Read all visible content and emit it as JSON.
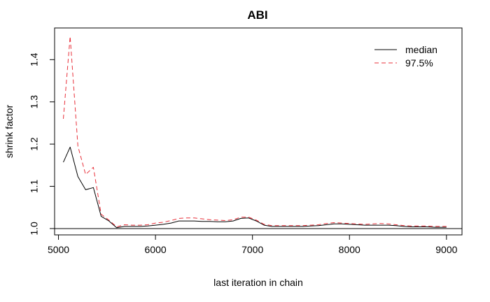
{
  "chart_data": {
    "type": "line",
    "title": "ABI",
    "xlabel": "last iteration in chain",
    "ylabel": "shrink factor",
    "xlim": [
      4960,
      9160
    ],
    "ylim": [
      0.985,
      1.475
    ],
    "x_ticks": [
      5000,
      6000,
      7000,
      8000,
      9000
    ],
    "y_ticks": [
      1.0,
      1.1,
      1.2,
      1.3,
      1.4
    ],
    "x_tick_labels": [
      "5000",
      "6000",
      "7000",
      "8000",
      "9000"
    ],
    "y_tick_labels": [
      "1.0",
      "1.1",
      "1.2",
      "1.3",
      "1.4"
    ],
    "reference_line": 1.0,
    "legend_position": "top-right",
    "x": [
      5050,
      5120,
      5200,
      5280,
      5360,
      5440,
      5520,
      5600,
      5680,
      5760,
      5840,
      5920,
      6000,
      6080,
      6160,
      6240,
      6320,
      6400,
      6480,
      6560,
      6640,
      6720,
      6800,
      6880,
      6960,
      7040,
      7120,
      7200,
      7280,
      7360,
      7440,
      7520,
      7600,
      7680,
      7760,
      7840,
      7920,
      8000,
      8080,
      8160,
      8240,
      8320,
      8400,
      8480,
      8560,
      8640,
      8720,
      8800,
      8880,
      8960,
      9000
    ],
    "series": [
      {
        "name": "median",
        "color": "#000000",
        "dash": "solid",
        "values": [
          1.157,
          1.193,
          1.123,
          1.092,
          1.097,
          1.029,
          1.018,
          1.002,
          1.005,
          1.005,
          1.005,
          1.006,
          1.008,
          1.01,
          1.013,
          1.018,
          1.018,
          1.018,
          1.017,
          1.017,
          1.016,
          1.016,
          1.018,
          1.024,
          1.025,
          1.018,
          1.008,
          1.005,
          1.005,
          1.005,
          1.005,
          1.005,
          1.006,
          1.007,
          1.009,
          1.011,
          1.011,
          1.01,
          1.009,
          1.008,
          1.008,
          1.008,
          1.008,
          1.007,
          1.005,
          1.004,
          1.004,
          1.004,
          1.003,
          1.003,
          1.003
        ]
      },
      {
        "name": "97.5%",
        "color": "#e8303a",
        "dash": "dashed",
        "values": [
          1.26,
          1.455,
          1.195,
          1.128,
          1.145,
          1.034,
          1.02,
          1.004,
          1.009,
          1.008,
          1.008,
          1.009,
          1.013,
          1.015,
          1.019,
          1.024,
          1.025,
          1.025,
          1.023,
          1.021,
          1.02,
          1.019,
          1.021,
          1.027,
          1.027,
          1.02,
          1.01,
          1.007,
          1.007,
          1.007,
          1.007,
          1.007,
          1.008,
          1.009,
          1.012,
          1.014,
          1.013,
          1.012,
          1.011,
          1.01,
          1.011,
          1.012,
          1.011,
          1.009,
          1.007,
          1.006,
          1.006,
          1.006,
          1.005,
          1.005,
          1.005
        ]
      }
    ]
  }
}
